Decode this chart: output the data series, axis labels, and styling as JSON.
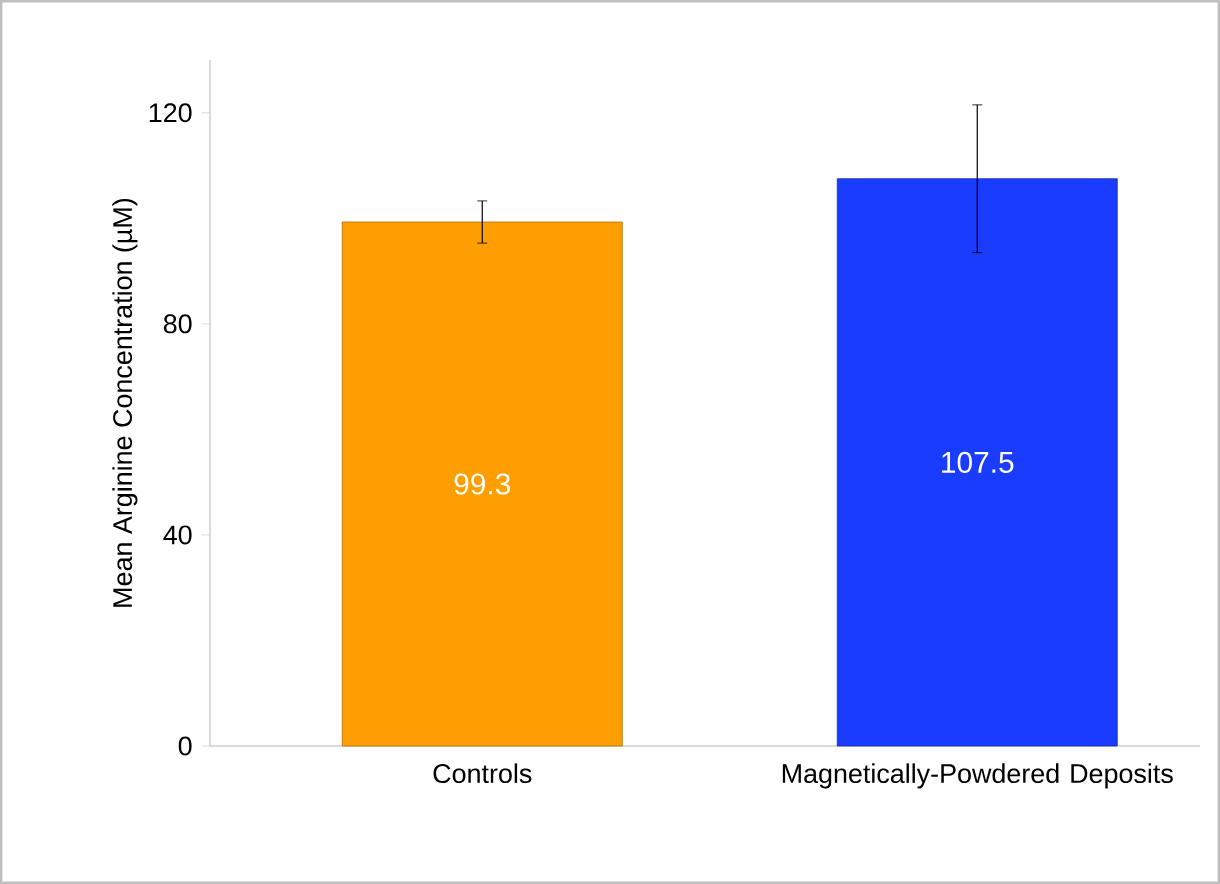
{
  "chart_data": {
    "type": "bar",
    "ylabel": "Mean Arginine Concentration (µM)",
    "categories": [
      "Controls",
      "Magnetically-Powdered Deposits"
    ],
    "values": [
      99.3,
      107.5
    ],
    "colors": [
      "#ff9e00",
      "#1a3cff"
    ],
    "errors": [
      4,
      14
    ],
    "ylim": [
      0,
      130
    ],
    "yticks": [
      0,
      40,
      80,
      120
    ],
    "data_labels": true,
    "grid": false
  }
}
